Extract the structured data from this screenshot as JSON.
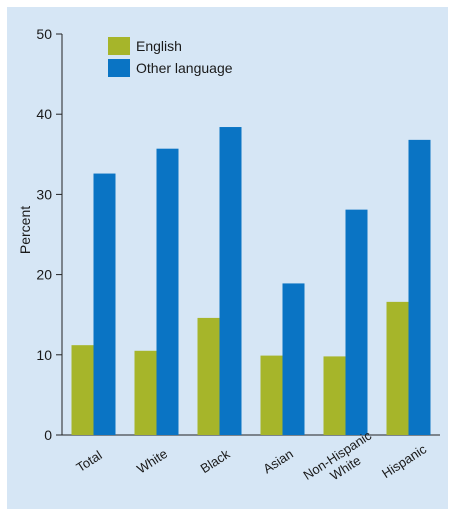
{
  "chart_data": {
    "type": "bar",
    "categories": [
      "Total",
      "White",
      "Black",
      "Asian",
      "Non-Hispanic White",
      "Hispanic"
    ],
    "category_labels": [
      [
        "Total"
      ],
      [
        "White"
      ],
      [
        "Black"
      ],
      [
        "Asian"
      ],
      [
        "Non-Hispanic",
        "White"
      ],
      [
        "Hispanic"
      ]
    ],
    "series": [
      {
        "name": "English",
        "color": "#a6b52a",
        "values": [
          11.2,
          10.5,
          14.6,
          9.9,
          9.8,
          16.6
        ]
      },
      {
        "name": "Other language",
        "color": "#0a74c4",
        "values": [
          32.6,
          35.7,
          38.4,
          18.9,
          28.1,
          36.8
        ]
      }
    ],
    "title": "",
    "xlabel": "",
    "ylabel": "Percent",
    "ylim": [
      0,
      50
    ],
    "yticks": [
      0,
      10,
      20,
      30,
      40,
      50
    ],
    "grid": false,
    "legend_position": "top-left",
    "background_color": "#d6e6f5"
  }
}
